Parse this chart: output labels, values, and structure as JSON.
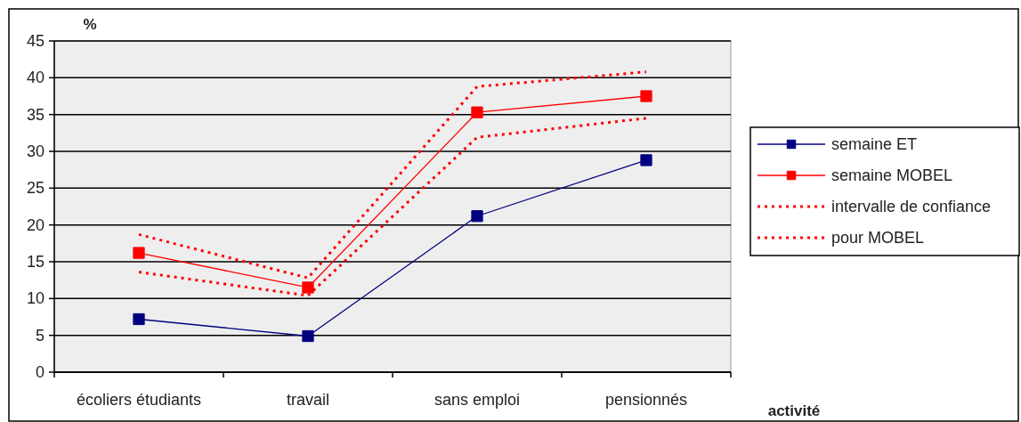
{
  "chart_data": {
    "type": "line",
    "xlabel": "activité",
    "ylabel": "%",
    "categories": [
      "écoliers étudiants",
      "travail",
      "sans emploi",
      "pensionnés"
    ],
    "series": [
      {
        "name": "semaine ET",
        "color": "#000080",
        "values": [
          7.2,
          4.9,
          21.2,
          28.8
        ],
        "marker": "square",
        "line_style": "solid"
      },
      {
        "name": "semaine MOBEL",
        "color": "#ff0000",
        "values": [
          16.2,
          11.5,
          35.3,
          37.5
        ],
        "marker": "square",
        "line_style": "solid"
      },
      {
        "name": "intervalle de confiance",
        "color": "#ff0000",
        "values": [
          18.7,
          12.8,
          38.8,
          40.8
        ],
        "marker": "none",
        "line_style": "dotted"
      },
      {
        "name": "pour MOBEL",
        "color": "#ff0000",
        "values": [
          13.6,
          10.4,
          31.9,
          34.5
        ],
        "marker": "none",
        "line_style": "dotted"
      }
    ],
    "ylim": [
      0,
      45
    ],
    "yticks": [
      0,
      5,
      10,
      15,
      20,
      25,
      30,
      35,
      40,
      45
    ],
    "grid": "y",
    "legend": "right"
  }
}
